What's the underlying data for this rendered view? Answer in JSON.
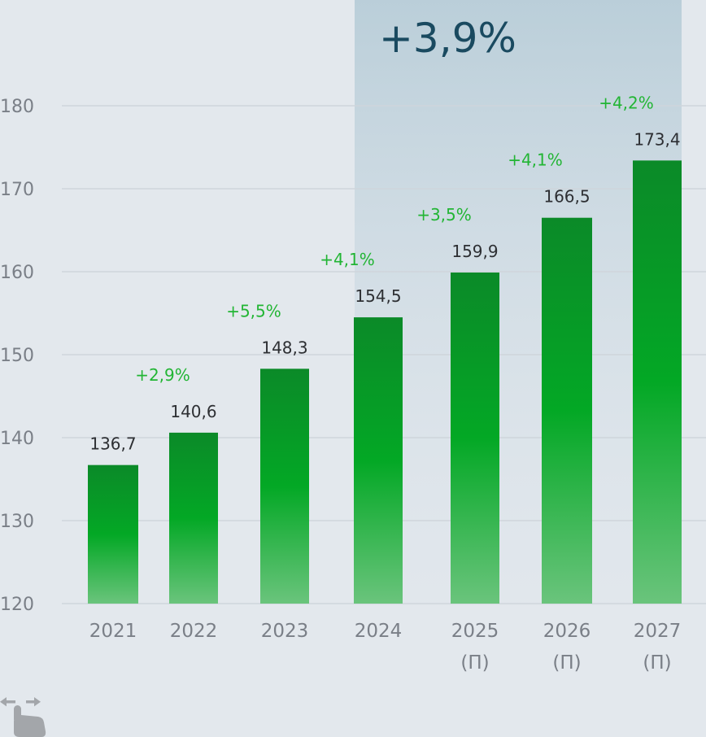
{
  "chart_data": {
    "type": "bar",
    "categories": [
      "2021",
      "2022",
      "2023",
      "2024",
      "2025",
      "2026",
      "2027"
    ],
    "category_sublabels": [
      "",
      "",
      "",
      "",
      "(П)",
      "(П)",
      "(П)"
    ],
    "values": [
      136.7,
      140.6,
      148.3,
      154.5,
      159.9,
      166.5,
      173.4
    ],
    "value_labels": [
      "136,7",
      "140,6",
      "148,3",
      "154,5",
      "159,9",
      "166,5",
      "173,4"
    ],
    "growth_labels": [
      "",
      "+2,9%",
      "+5,5%",
      "+4,1%",
      "+3,5%",
      "+4,1%",
      "+4,2%"
    ],
    "yticks": [
      "120",
      "130",
      "140",
      "150",
      "160",
      "170",
      "180"
    ],
    "ylim": [
      120,
      180
    ],
    "highlight_label": "+3,9%",
    "highlight_range": [
      "2024",
      "2027"
    ],
    "colors": {
      "bar_top": "#0b8a28",
      "bar_mid": "#03a825",
      "bar_bottom": "#6ac47c",
      "growth_text": "#22b534",
      "value_text": "#2d2f33",
      "highlight_text": "#1a4a60"
    }
  },
  "icons": {
    "gesture": "swipe-hand-icon"
  }
}
